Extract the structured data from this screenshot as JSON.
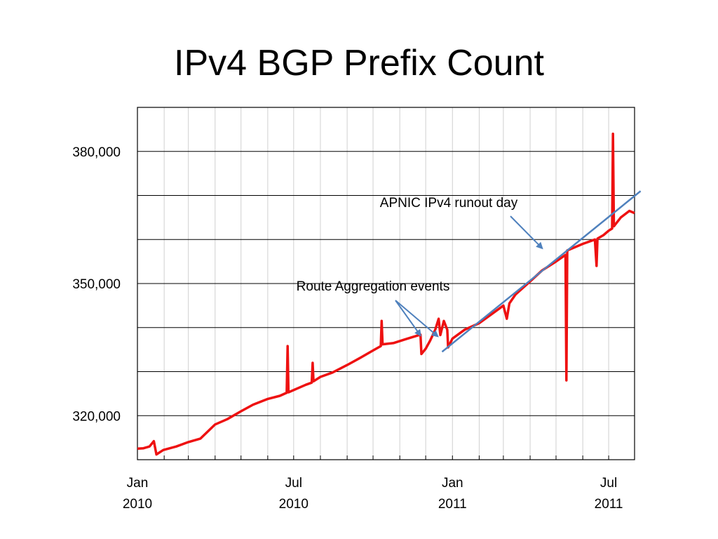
{
  "slide": {
    "title": "IPv4 BGP Prefix Count"
  },
  "chart_data": {
    "type": "line",
    "title": "IPv4 BGP Prefix Count",
    "xlabel": "",
    "ylabel": "",
    "x_range": [
      "2010-01-01",
      "2011-07-31"
    ],
    "ylim": [
      310000,
      390000
    ],
    "grid": true,
    "y_ticks": [
      {
        "value": 320000,
        "label": "320,000"
      },
      {
        "value": 350000,
        "label": "350,000"
      },
      {
        "value": 380000,
        "label": "380,000"
      }
    ],
    "x_ticks": [
      {
        "date": "2010-01-01",
        "month": "Jan",
        "year": "2010"
      },
      {
        "date": "2010-07-01",
        "month": "Jul",
        "year": "2010"
      },
      {
        "date": "2011-01-01",
        "month": "Jan",
        "year": "2011"
      },
      {
        "date": "2011-07-01",
        "month": "Jul",
        "year": "2011"
      }
    ],
    "series": [
      {
        "color": "#ee1111",
        "points": [
          [
            "2010-01-01",
            312500
          ],
          [
            "2010-01-08",
            312600
          ],
          [
            "2010-01-15",
            313000
          ],
          [
            "2010-01-20",
            314200
          ],
          [
            "2010-01-23",
            311200
          ],
          [
            "2010-01-31",
            312200
          ],
          [
            "2010-02-15",
            313000
          ],
          [
            "2010-03-01",
            314000
          ],
          [
            "2010-03-15",
            314800
          ],
          [
            "2010-04-01",
            318000
          ],
          [
            "2010-04-15",
            319200
          ],
          [
            "2010-05-01",
            321000
          ],
          [
            "2010-05-15",
            322500
          ],
          [
            "2010-06-01",
            323800
          ],
          [
            "2010-06-15",
            324500
          ],
          [
            "2010-06-23",
            325200
          ],
          [
            "2010-06-24",
            335800
          ],
          [
            "2010-06-25",
            325300
          ],
          [
            "2010-07-15",
            327000
          ],
          [
            "2010-07-22",
            327500
          ],
          [
            "2010-07-23",
            332000
          ],
          [
            "2010-07-24",
            327800
          ],
          [
            "2010-08-01",
            328800
          ],
          [
            "2010-08-15",
            329800
          ],
          [
            "2010-09-01",
            331500
          ],
          [
            "2010-09-15",
            333000
          ],
          [
            "2010-10-01",
            334800
          ],
          [
            "2010-10-10",
            335800
          ],
          [
            "2010-10-11",
            341500
          ],
          [
            "2010-10-12",
            336200
          ],
          [
            "2010-10-25",
            336500
          ],
          [
            "2010-11-10",
            337500
          ],
          [
            "2010-11-25",
            338400
          ],
          [
            "2010-11-26",
            334000
          ],
          [
            "2010-12-01",
            335200
          ],
          [
            "2010-12-06",
            337000
          ],
          [
            "2010-12-12",
            339500
          ],
          [
            "2010-12-16",
            342000
          ],
          [
            "2010-12-18",
            338300
          ],
          [
            "2010-12-22",
            341500
          ],
          [
            "2010-12-26",
            339500
          ],
          [
            "2010-12-27",
            335500
          ],
          [
            "2011-01-01",
            337500
          ],
          [
            "2011-01-15",
            339500
          ],
          [
            "2011-02-01",
            341000
          ],
          [
            "2011-02-15",
            343000
          ],
          [
            "2011-03-01",
            345000
          ],
          [
            "2011-03-05",
            342000
          ],
          [
            "2011-03-08",
            345500
          ],
          [
            "2011-03-15",
            347500
          ],
          [
            "2011-04-01",
            350500
          ],
          [
            "2011-04-15",
            353000
          ],
          [
            "2011-05-01",
            355000
          ],
          [
            "2011-05-12",
            356500
          ],
          [
            "2011-05-13",
            328000
          ],
          [
            "2011-05-14",
            357500
          ],
          [
            "2011-06-01",
            359000
          ],
          [
            "2011-06-15",
            360000
          ],
          [
            "2011-06-17",
            354000
          ],
          [
            "2011-06-18",
            360200
          ],
          [
            "2011-06-25",
            361000
          ],
          [
            "2011-07-01",
            362000
          ],
          [
            "2011-07-05",
            362500
          ],
          [
            "2011-07-06",
            384000
          ],
          [
            "2011-07-07",
            363000
          ],
          [
            "2011-07-15",
            365000
          ],
          [
            "2011-07-25",
            366500
          ],
          [
            "2011-07-31",
            366000
          ]
        ]
      }
    ],
    "trend_line": {
      "color": "#4f81bd",
      "from": [
        "2010-12-20",
        334500
      ],
      "to": [
        "2011-08-07",
        371000
      ]
    },
    "annotations": [
      {
        "text": "APNIC IPv4 runout day",
        "arrow_to": [
          [
            "2011-04-15",
            358000
          ]
        ]
      },
      {
        "text": "Route Aggregation events",
        "arrow_to": [
          [
            "2010-11-25",
            338200
          ],
          [
            "2010-12-15",
            338000
          ]
        ]
      }
    ]
  }
}
